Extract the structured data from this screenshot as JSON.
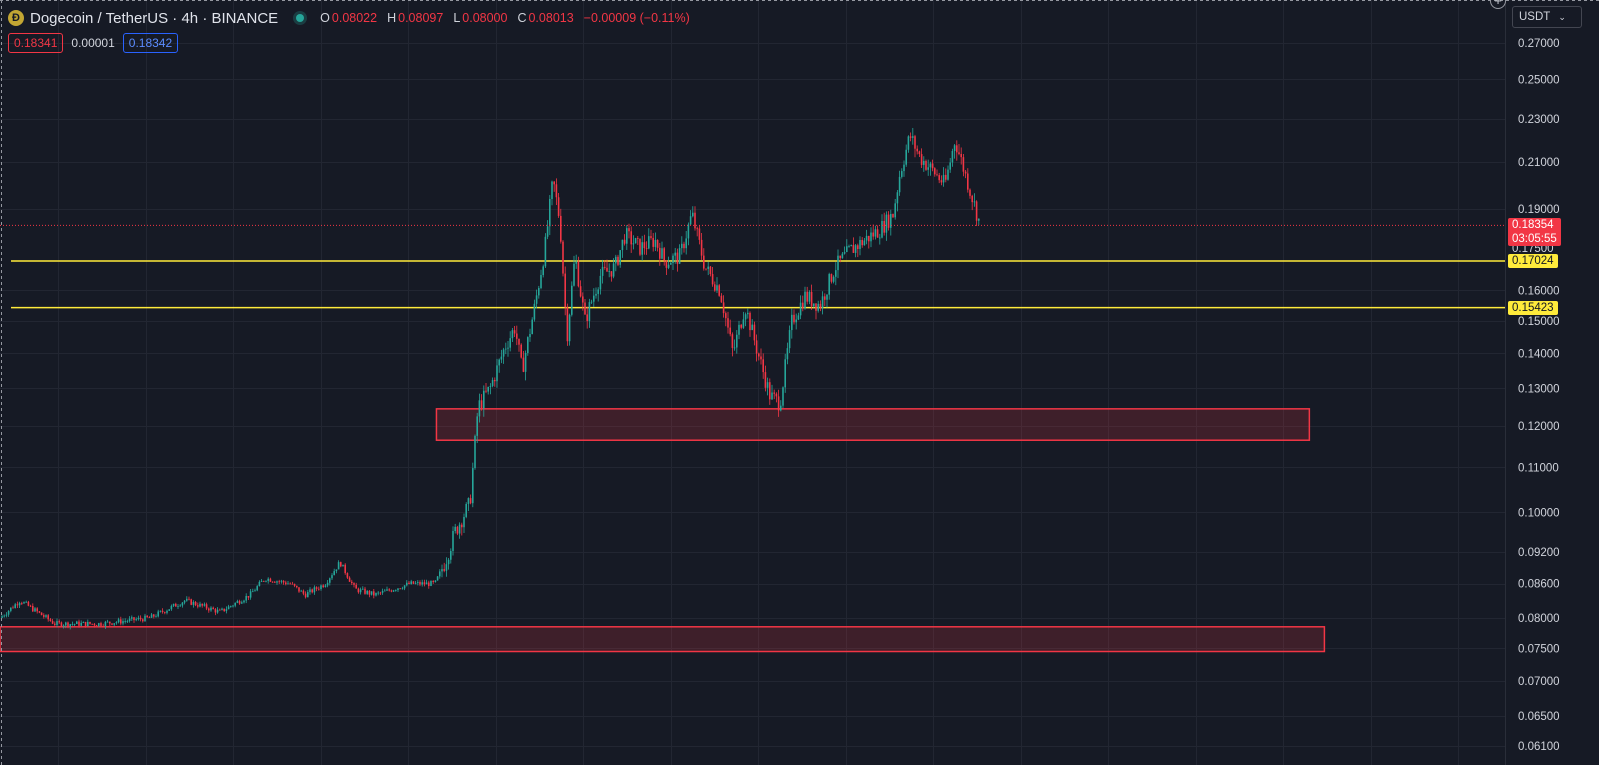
{
  "header": {
    "symbol_title": "Dogecoin / TetherUS · 4h · BINANCE",
    "coin_icon": "dogecoin-icon",
    "ohlc": {
      "o_label": "O",
      "o_value": "0.08022",
      "h_label": "H",
      "h_value": "0.08097",
      "l_label": "L",
      "l_value": "0.08000",
      "c_label": "C",
      "c_value": "0.08013",
      "change": "−0.00009 (−0.11%)"
    }
  },
  "bid_ask": {
    "bid": "0.18341",
    "spread": "0.00001",
    "ask": "0.18342"
  },
  "currency_button": {
    "label": "USDT"
  },
  "price_axis": {
    "last_price": "0.18354",
    "countdown": "03:05:55",
    "hidden_label": "0.17500",
    "levels": [
      "0.17024",
      "0.15423"
    ]
  },
  "colors": {
    "background": "#161a25",
    "up": "#26a69a",
    "down": "#f23645",
    "level_line": "#ffeb3b",
    "zone": "#f23645"
  },
  "chart_data": {
    "type": "candlestick",
    "y_scale": "log",
    "ylim": [
      0.061,
      0.28
    ],
    "y_ticks": [
      "0.27000",
      "0.25000",
      "0.23000",
      "0.21000",
      "0.19000",
      "0.16000",
      "0.15000",
      "0.14000",
      "0.13000",
      "0.12000",
      "0.11000",
      "0.10000",
      "0.09200",
      "0.08600",
      "0.08000",
      "0.07500",
      "0.07000",
      "0.06500",
      "0.06100"
    ],
    "grid": true,
    "horizontal_levels": [
      0.17024,
      0.15423
    ],
    "zones": [
      {
        "low": 0.1165,
        "high": 0.1245,
        "x_start_frac": 0.29,
        "x_end_frac": 0.87
      },
      {
        "low": 0.0745,
        "high": 0.0785,
        "x_start_frac": 0.0,
        "x_end_frac": 0.88
      }
    ],
    "price_path": [
      [
        0,
        0.08
      ],
      [
        20,
        0.083
      ],
      [
        55,
        0.079
      ],
      [
        100,
        0.079
      ],
      [
        150,
        0.08
      ],
      [
        185,
        0.083
      ],
      [
        220,
        0.081
      ],
      [
        250,
        0.084
      ],
      [
        265,
        0.087
      ],
      [
        290,
        0.086
      ],
      [
        305,
        0.084
      ],
      [
        325,
        0.086
      ],
      [
        340,
        0.09
      ],
      [
        355,
        0.085
      ],
      [
        375,
        0.084
      ],
      [
        410,
        0.086
      ],
      [
        435,
        0.086
      ],
      [
        445,
        0.09
      ],
      [
        455,
        0.096
      ],
      [
        470,
        0.102
      ],
      [
        478,
        0.125
      ],
      [
        490,
        0.13
      ],
      [
        505,
        0.142
      ],
      [
        515,
        0.148
      ],
      [
        522,
        0.135
      ],
      [
        535,
        0.155
      ],
      [
        545,
        0.175
      ],
      [
        553,
        0.202
      ],
      [
        560,
        0.185
      ],
      [
        567,
        0.145
      ],
      [
        575,
        0.172
      ],
      [
        585,
        0.15
      ],
      [
        600,
        0.165
      ],
      [
        615,
        0.168
      ],
      [
        625,
        0.18
      ],
      [
        640,
        0.175
      ],
      [
        655,
        0.178
      ],
      [
        665,
        0.17
      ],
      [
        680,
        0.172
      ],
      [
        692,
        0.188
      ],
      [
        705,
        0.168
      ],
      [
        720,
        0.16
      ],
      [
        733,
        0.14
      ],
      [
        745,
        0.155
      ],
      [
        758,
        0.14
      ],
      [
        770,
        0.128
      ],
      [
        780,
        0.126
      ],
      [
        792,
        0.15
      ],
      [
        805,
        0.158
      ],
      [
        820,
        0.155
      ],
      [
        835,
        0.168
      ],
      [
        850,
        0.174
      ],
      [
        865,
        0.178
      ],
      [
        880,
        0.182
      ],
      [
        893,
        0.188
      ],
      [
        900,
        0.205
      ],
      [
        910,
        0.222
      ],
      [
        920,
        0.212
      ],
      [
        935,
        0.205
      ],
      [
        945,
        0.2
      ],
      [
        955,
        0.22
      ],
      [
        965,
        0.205
      ],
      [
        972,
        0.195
      ],
      [
        980,
        0.184
      ]
    ],
    "last_price": 0.18354
  }
}
